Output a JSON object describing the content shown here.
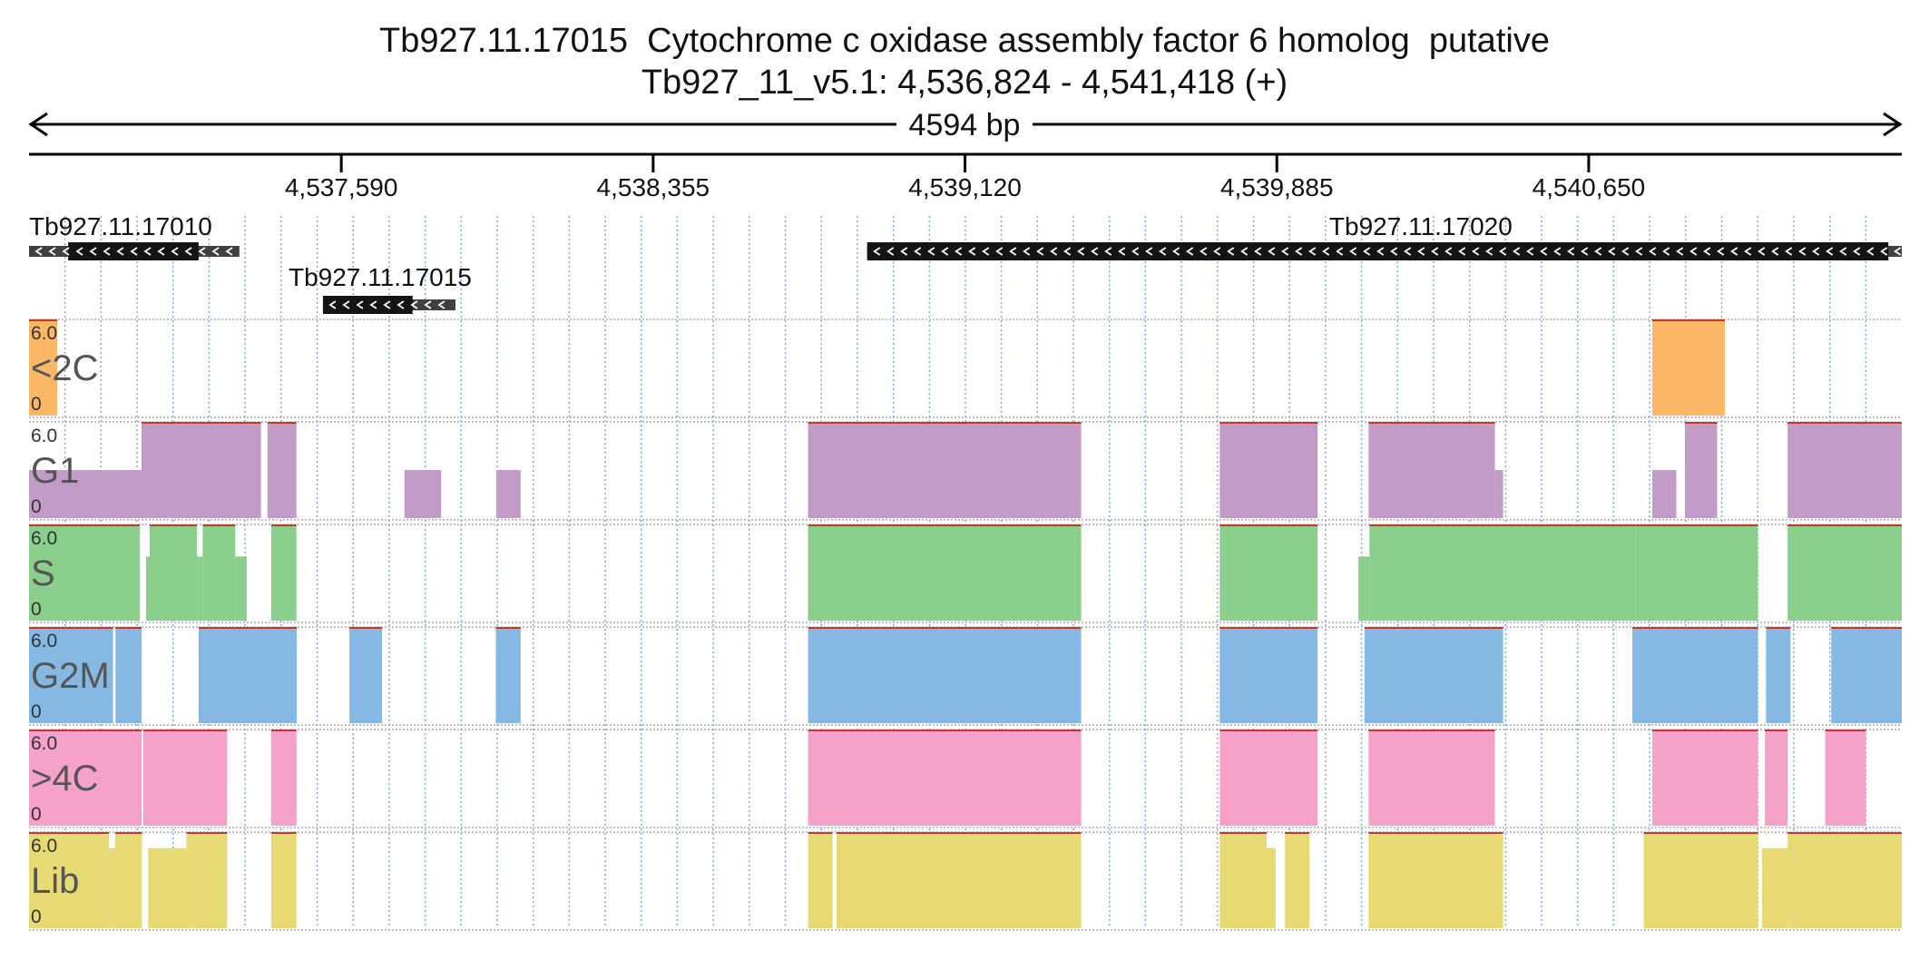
{
  "title": "Tb927.11.17015  Cytochrome c oxidase assembly factor 6 homolog  putative",
  "subtitle": "Tb927_11_v5.1: 4,536,824 - 4,541,418 (+)",
  "chart_data": {
    "type": "area",
    "region": {
      "chrom": "Tb927_11_v5.1",
      "start": 4536824,
      "end": 4541418,
      "strand": "+"
    },
    "span_label": "4594 bp",
    "ruler_ticks": [
      4537590,
      4538355,
      4539120,
      4539885,
      4540650
    ],
    "ruler_tick_labels": [
      "4,537,590",
      "4,538,355",
      "4,539,120",
      "4,539,885",
      "4,540,650"
    ],
    "grid": true,
    "genes": [
      {
        "name": "Tb927.11.17010",
        "strand": "-",
        "start": 4536824,
        "end": 4537340,
        "cds": [
          4536920,
          4537240
        ]
      },
      {
        "name": "Tb927.11.17015",
        "strand": "-",
        "start": 4537545,
        "end": 4537870,
        "cds": [
          4537545,
          4537765
        ]
      },
      {
        "name": "Tb927.11.17020",
        "strand": "-",
        "start": 4538880,
        "end": 4541418,
        "cds": [
          4538880,
          4541385
        ]
      }
    ],
    "tracks": [
      {
        "name": "<2C",
        "color": "#FBB666",
        "ymax_label": "6.0",
        "ymin_label": "0",
        "ylim": [
          0,
          6
        ],
        "segments": [
          [
            4536824,
            4536893,
            6
          ],
          [
            4540806,
            4540984,
            6
          ]
        ]
      },
      {
        "name": "G1",
        "color": "#C39BC7",
        "ymax_label": "6.0",
        "ymin_label": "0",
        "ylim": [
          0,
          6
        ],
        "segments": [
          [
            4536824,
            4537100,
            3
          ],
          [
            4537100,
            4537200,
            6
          ],
          [
            4537200,
            4537393,
            6
          ],
          [
            4537409,
            4537480,
            6
          ],
          [
            4537745,
            4537835,
            3
          ],
          [
            4537970,
            4538030,
            3
          ],
          [
            4538735,
            4539405,
            6
          ],
          [
            4539745,
            4539985,
            6
          ],
          [
            4540110,
            4540420,
            6
          ],
          [
            4540420,
            4540440,
            3
          ],
          [
            4540806,
            4540865,
            3
          ],
          [
            4540886,
            4540965,
            6
          ],
          [
            4541138,
            4541418,
            6
          ]
        ]
      },
      {
        "name": "S",
        "color": "#8ACF8C",
        "ymax_label": "6.0",
        "ymin_label": "0",
        "ylim": [
          0,
          6
        ],
        "segments": [
          [
            4536824,
            4537096,
            6
          ],
          [
            4537111,
            4537120,
            4
          ],
          [
            4537120,
            4537236,
            6
          ],
          [
            4537236,
            4537250,
            4
          ],
          [
            4537250,
            4537330,
            6
          ],
          [
            4537330,
            4537358,
            4
          ],
          [
            4537418,
            4537480,
            6
          ],
          [
            4538735,
            4539405,
            6
          ],
          [
            4539745,
            4539985,
            6
          ],
          [
            4540085,
            4540112,
            4
          ],
          [
            4540112,
            4540765,
            6
          ],
          [
            4540765,
            4541065,
            6
          ],
          [
            4541138,
            4541418,
            6
          ]
        ]
      },
      {
        "name": "G2M",
        "color": "#85B9E3",
        "ymax_label": "6.0",
        "ymin_label": "0",
        "ylim": [
          0,
          6
        ],
        "segments": [
          [
            4536824,
            4537030,
            6
          ],
          [
            4537036,
            4537100,
            6
          ],
          [
            4537240,
            4537481,
            6
          ],
          [
            4537610,
            4537690,
            6
          ],
          [
            4537969,
            4538030,
            6
          ],
          [
            4538735,
            4539405,
            6
          ],
          [
            4539745,
            4539985,
            6
          ],
          [
            4540100,
            4540440,
            6
          ],
          [
            4540757,
            4541065,
            6
          ],
          [
            4541085,
            4541145,
            6
          ],
          [
            4541245,
            4541418,
            6
          ]
        ]
      },
      {
        "name": ">4C",
        "color": "#F5A1C8",
        "ymax_label": "6.0",
        "ymin_label": "0",
        "ylim": [
          0,
          6
        ],
        "segments": [
          [
            4536824,
            4537100,
            6
          ],
          [
            4537104,
            4537310,
            6
          ],
          [
            4537418,
            4537480,
            6
          ],
          [
            4538735,
            4539405,
            6
          ],
          [
            4539745,
            4539985,
            6
          ],
          [
            4540110,
            4540420,
            6
          ],
          [
            4540806,
            4541065,
            6
          ],
          [
            4541082,
            4541138,
            6
          ],
          [
            4541230,
            4541330,
            6
          ]
        ]
      },
      {
        "name": "Lib",
        "color": "#E7D973",
        "ymax_label": "6.0",
        "ymin_label": "0",
        "ylim": [
          0,
          6
        ],
        "segments": [
          [
            4536824,
            4537020,
            6
          ],
          [
            4537020,
            4537035,
            5
          ],
          [
            4537035,
            4537101,
            6
          ],
          [
            4537116,
            4537210,
            5
          ],
          [
            4537210,
            4537222,
            6
          ],
          [
            4537222,
            4537310,
            6
          ],
          [
            4537418,
            4537480,
            6
          ],
          [
            4538735,
            4538795,
            6
          ],
          [
            4538805,
            4539405,
            6
          ],
          [
            4539745,
            4539860,
            6
          ],
          [
            4539860,
            4539882,
            5
          ],
          [
            4539905,
            4539965,
            6
          ],
          [
            4540110,
            4540440,
            6
          ],
          [
            4540785,
            4541065,
            6
          ],
          [
            4541075,
            4541138,
            5
          ],
          [
            4541138,
            4541418,
            6
          ]
        ]
      }
    ]
  }
}
